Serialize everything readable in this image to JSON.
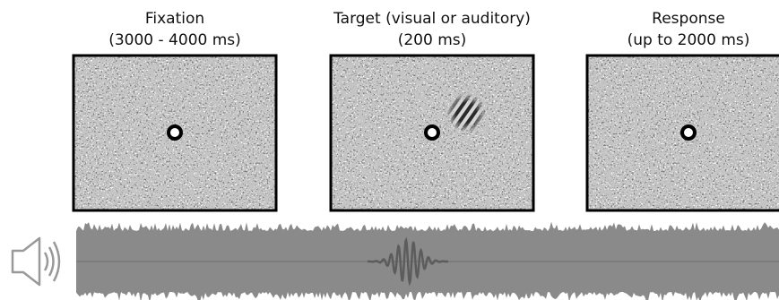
{
  "panels": [
    {
      "title": "Fixation",
      "duration": "(3000 - 4000 ms)"
    },
    {
      "title": "Target (visual or auditory)",
      "duration": "(200 ms)"
    },
    {
      "title": "Response",
      "duration": "(up to 2000 ms)"
    }
  ]
}
